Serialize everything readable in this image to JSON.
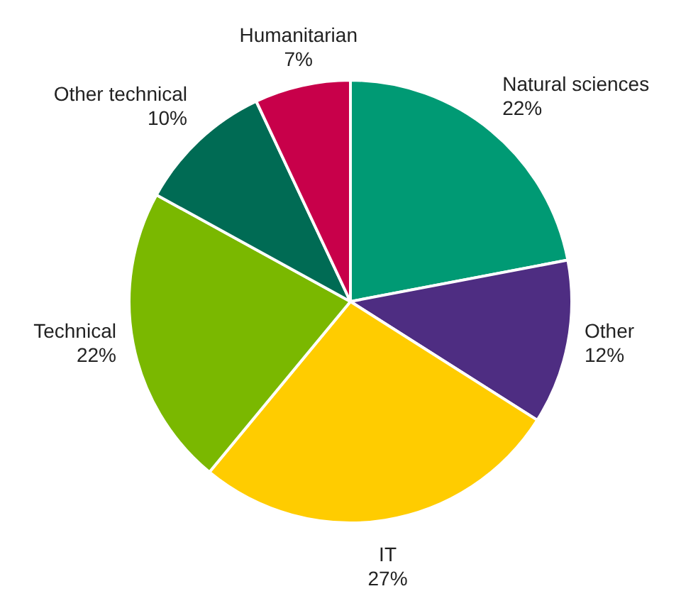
{
  "chart_data": {
    "type": "pie",
    "categories": [
      "Natural sciences",
      "Other",
      "IT",
      "Technical",
      "Other technical",
      "Humanitarian"
    ],
    "values": [
      22,
      12,
      27,
      22,
      10,
      7
    ],
    "value_labels": [
      "22%",
      "12%",
      "27%",
      "22%",
      "10%",
      "7%"
    ],
    "colors": [
      "#009a74",
      "#4e2d82",
      "#ffcc00",
      "#7ab800",
      "#006b54",
      "#c8004a"
    ],
    "legend": false
  }
}
